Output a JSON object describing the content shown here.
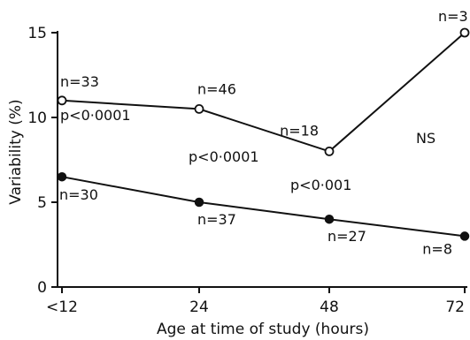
{
  "chart_data": {
    "type": "line",
    "xlabel": "Age at time of study (hours)",
    "ylabel": "Variability (%)",
    "x_ticks": [
      "<12",
      "24",
      "48",
      "72"
    ],
    "y_ticks": [
      "0",
      "5",
      "10",
      "15"
    ],
    "ylim": [
      0,
      15
    ],
    "grid": false,
    "legend": "none",
    "series": [
      {
        "marker": "open-circle",
        "x": [
          "<12",
          "24",
          "48",
          "72"
        ],
        "values": [
          11,
          10.5,
          8,
          15
        ],
        "labels": [
          "n=33",
          "n=46",
          "n=18",
          "n=3"
        ]
      },
      {
        "marker": "filled-circle",
        "x": [
          "<12",
          "24",
          "48",
          "72"
        ],
        "values": [
          6.5,
          5,
          4,
          3
        ],
        "labels": [
          "n=30",
          "n=37",
          "n=27",
          "n=8"
        ]
      }
    ],
    "annotations": [
      "p<0·0001",
      "p<0·0001",
      "p<0·001",
      "NS"
    ]
  }
}
